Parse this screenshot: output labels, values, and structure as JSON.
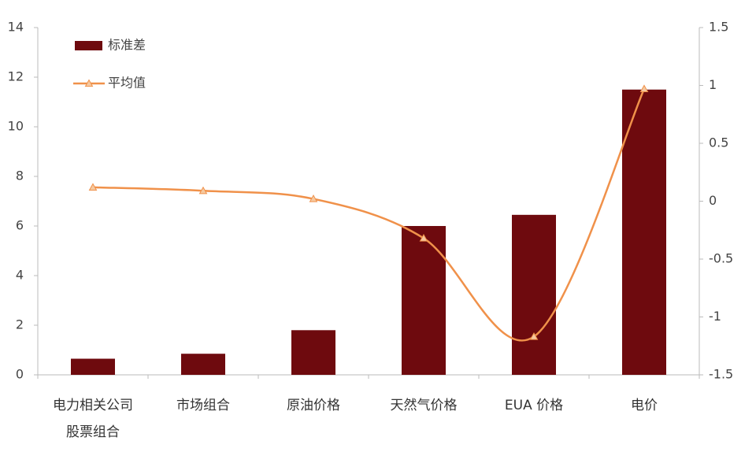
{
  "chart_data": {
    "type": "bar-line",
    "categories": [
      "电力相关公司股票组合",
      "市场组合",
      "原油价格",
      "天然气价格",
      "EUA 价格",
      "电价"
    ],
    "series": [
      {
        "name": "标准差",
        "type": "bar",
        "color": "#6e0a0e",
        "values": [
          0.65,
          0.85,
          1.8,
          6.0,
          6.45,
          11.5
        ]
      },
      {
        "name": "平均值",
        "type": "line",
        "axis": "y2",
        "color": "#f0914a",
        "values": [
          0.12,
          0.09,
          0.02,
          -0.32,
          -1.17,
          0.97
        ]
      }
    ],
    "ylim": [
      0,
      14
    ],
    "yticks": [
      0,
      2,
      4,
      6,
      8,
      10,
      12,
      14
    ],
    "y2lim": [
      -1.5,
      1.5
    ],
    "y2ticks": [
      -1.5,
      -1,
      -0.5,
      0,
      0.5,
      1,
      1.5
    ],
    "legend": "top-left"
  }
}
